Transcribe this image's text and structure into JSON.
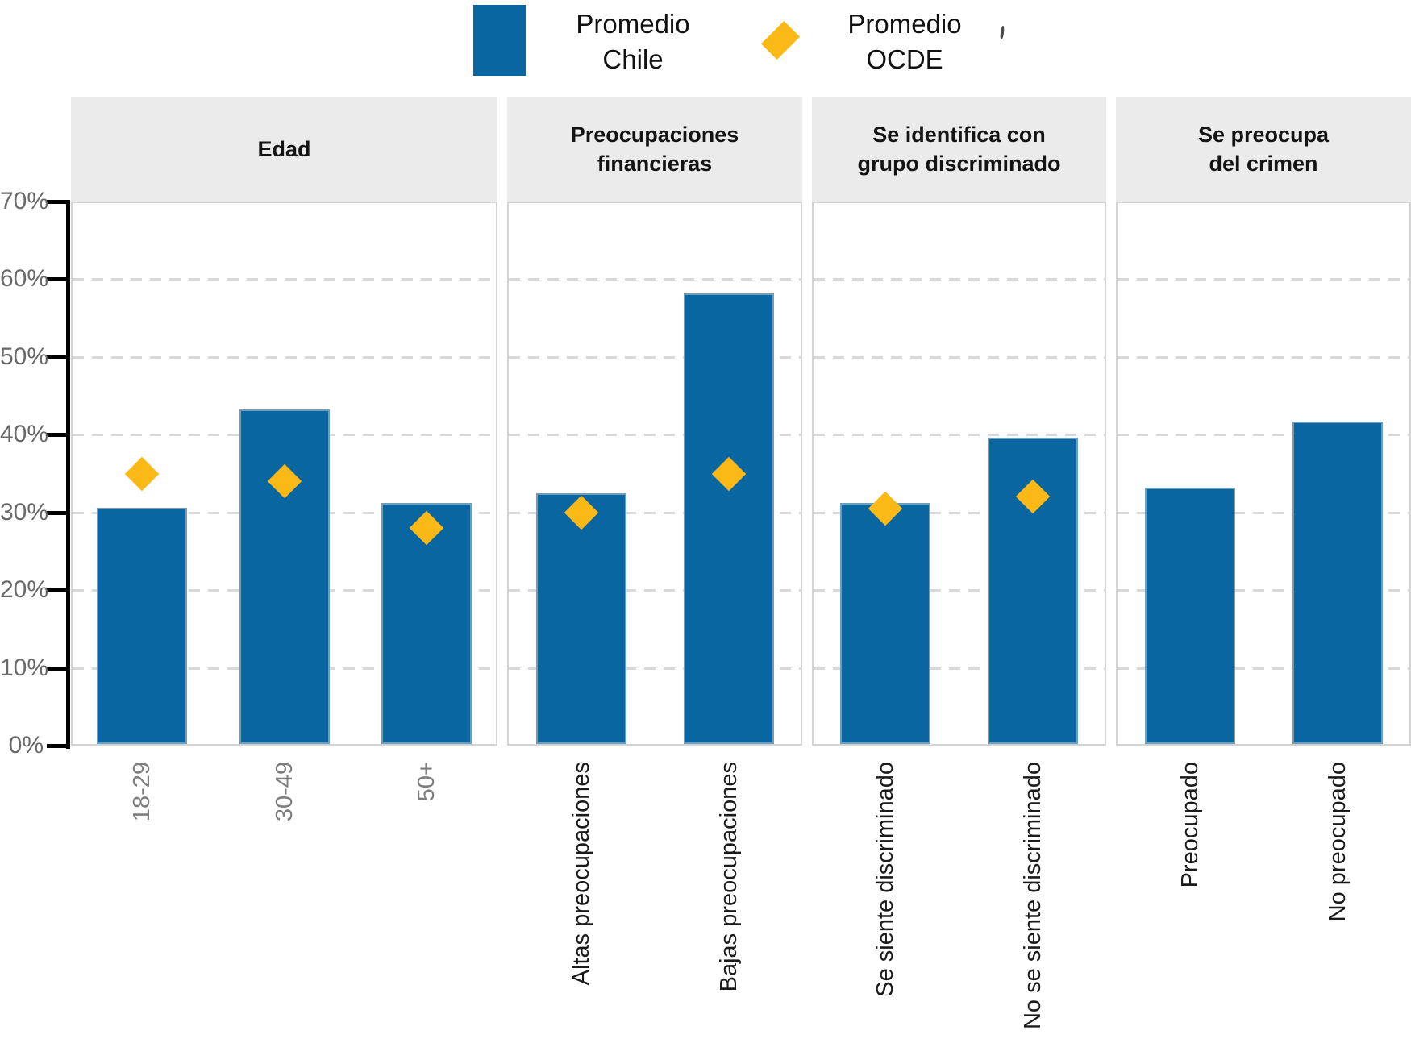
{
  "legend": {
    "chile": {
      "line1": "Promedio",
      "line2": "Chile"
    },
    "ocde": {
      "line1": "Promedio",
      "line2": "OCDE"
    }
  },
  "y_axis": {
    "tick_labels": [
      "0%",
      "10%",
      "20%",
      "30%",
      "40%",
      "50%",
      "60%",
      "70%"
    ]
  },
  "colors": {
    "chile_bar": "#0A66A0",
    "ocde_diamond": "#FBB917",
    "facet_header_bg": "#EBEBEB",
    "panel_border": "#D4D4D4",
    "gridline": "#D9D9D9",
    "axis": "#000000",
    "y_tick_label": "#696969",
    "x_label_gray": "#7D7D7D",
    "x_label_black": "#1A1A1A"
  },
  "chart_data": {
    "type": "bar",
    "unit": "percent",
    "ylim": [
      0,
      70
    ],
    "yticks": [
      0,
      10,
      20,
      30,
      40,
      50,
      60,
      70
    ],
    "grid": "horizontal dashed",
    "legend_position": "top",
    "series_names": [
      "Promedio Chile",
      "Promedio OCDE"
    ],
    "facets": [
      {
        "title_lines": [
          "Edad"
        ],
        "categories": [
          "18-29",
          "30-49",
          "50+"
        ],
        "promedio_chile": [
          30.4,
          43,
          31
        ],
        "promedio_ocde": [
          35,
          34,
          28
        ],
        "category_label_color": "gray"
      },
      {
        "title_lines": [
          "Preocupaciones",
          "financieras"
        ],
        "categories": [
          "Altas preocupaciones",
          "Bajas preocupaciones"
        ],
        "promedio_chile": [
          32.3,
          58
        ],
        "promedio_ocde": [
          30,
          35
        ],
        "category_label_color": "black"
      },
      {
        "title_lines": [
          "Se identifica con",
          "grupo discriminado"
        ],
        "categories": [
          "Se siente discriminado",
          "No se siente discriminado"
        ],
        "promedio_chile": [
          31,
          39.4
        ],
        "promedio_ocde": [
          30.5,
          32
        ],
        "category_label_color": "black"
      },
      {
        "title_lines": [
          "Se preocupa",
          "del crimen"
        ],
        "categories": [
          "Preocupado",
          "No preocupado"
        ],
        "promedio_chile": [
          33,
          41.5
        ],
        "promedio_ocde": [
          null,
          null
        ],
        "category_label_color": "black"
      }
    ]
  }
}
